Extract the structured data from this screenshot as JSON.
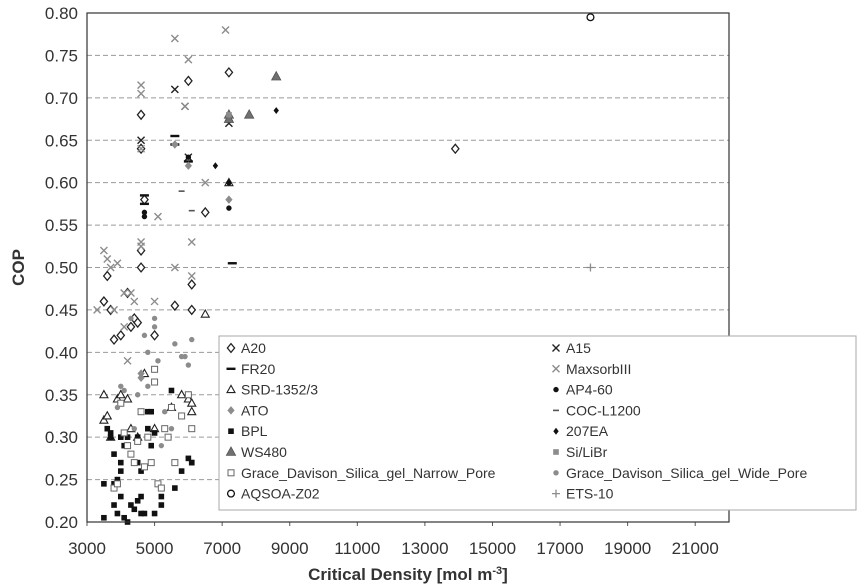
{
  "chart_data": {
    "type": "scatter",
    "title": "",
    "xlabel": "Critical Density [mol m",
    "xlabel_sup": "-3",
    "xlabel_end": "]",
    "ylabel": "COP",
    "xlim": [
      3000,
      22000
    ],
    "ylim": [
      0.2,
      0.8
    ],
    "xticks": [
      "3000",
      "5000",
      "7000",
      "9000",
      "11000",
      "13000",
      "15000",
      "17000",
      "19000",
      "21000"
    ],
    "yticks": [
      "0.20",
      "0.25",
      "0.30",
      "0.35",
      "0.40",
      "0.45",
      "0.50",
      "0.55",
      "0.60",
      "0.65",
      "0.70",
      "0.75",
      "0.80"
    ],
    "grid": "horizontal dashed",
    "legend_position": "center-right",
    "series": [
      {
        "name": "A20",
        "marker": "diamond-open",
        "color": "#222222",
        "points": [
          [
            3500,
            0.46
          ],
          [
            3600,
            0.49
          ],
          [
            3700,
            0.45
          ],
          [
            3800,
            0.415
          ],
          [
            4000,
            0.42
          ],
          [
            4200,
            0.47
          ],
          [
            4300,
            0.43
          ],
          [
            4400,
            0.44
          ],
          [
            4500,
            0.435
          ],
          [
            4600,
            0.5
          ],
          [
            4600,
            0.52
          ],
          [
            4600,
            0.68
          ],
          [
            4600,
            0.64
          ],
          [
            4700,
            0.58
          ],
          [
            5000,
            0.42
          ],
          [
            5600,
            0.455
          ],
          [
            6000,
            0.72
          ],
          [
            6100,
            0.48
          ],
          [
            6100,
            0.45
          ],
          [
            6500,
            0.565
          ],
          [
            7200,
            0.73
          ],
          [
            13900,
            0.64
          ]
        ]
      },
      {
        "name": "A15",
        "marker": "x",
        "color": "#222222",
        "points": [
          [
            4600,
            0.65
          ],
          [
            5600,
            0.71
          ],
          [
            5900,
            0.69
          ],
          [
            6000,
            0.63
          ],
          [
            7200,
            0.67
          ]
        ]
      },
      {
        "name": "FR20",
        "marker": "dash",
        "color": "#111111",
        "points": [
          [
            4700,
            0.585
          ],
          [
            5600,
            0.655
          ],
          [
            5600,
            0.645
          ],
          [
            6000,
            0.625
          ],
          [
            4700,
            0.575
          ],
          [
            7300,
            0.505
          ]
        ]
      },
      {
        "name": "MaxsorbIII",
        "marker": "x",
        "color": "#8c8c8c",
        "points": [
          [
            3300,
            0.45
          ],
          [
            3500,
            0.52
          ],
          [
            3600,
            0.51
          ],
          [
            3700,
            0.5
          ],
          [
            3800,
            0.45
          ],
          [
            3900,
            0.505
          ],
          [
            4100,
            0.47
          ],
          [
            4300,
            0.47
          ],
          [
            4400,
            0.46
          ],
          [
            4600,
            0.705
          ],
          [
            4600,
            0.715
          ],
          [
            4600,
            0.64
          ],
          [
            4600,
            0.53
          ],
          [
            4600,
            0.525
          ],
          [
            5000,
            0.46
          ],
          [
            5100,
            0.56
          ],
          [
            5600,
            0.77
          ],
          [
            5600,
            0.5
          ],
          [
            5900,
            0.69
          ],
          [
            6000,
            0.745
          ],
          [
            6100,
            0.53
          ],
          [
            6100,
            0.49
          ],
          [
            6500,
            0.6
          ],
          [
            7100,
            0.78
          ],
          [
            4100,
            0.43
          ],
          [
            4200,
            0.39
          ]
        ]
      },
      {
        "name": "SRD-1352/3",
        "marker": "triangle-open",
        "color": "#222222",
        "points": [
          [
            3500,
            0.35
          ],
          [
            3500,
            0.32
          ],
          [
            3600,
            0.325
          ],
          [
            3700,
            0.3
          ],
          [
            3900,
            0.345
          ],
          [
            4000,
            0.35
          ],
          [
            4200,
            0.345
          ],
          [
            4300,
            0.31
          ],
          [
            4500,
            0.3
          ],
          [
            4700,
            0.375
          ],
          [
            5000,
            0.31
          ],
          [
            5500,
            0.335
          ],
          [
            5800,
            0.35
          ],
          [
            6000,
            0.345
          ],
          [
            6100,
            0.33
          ],
          [
            6100,
            0.34
          ],
          [
            6500,
            0.445
          ],
          [
            7200,
            0.6
          ]
        ]
      },
      {
        "name": "AP4-60",
        "marker": "circle-filled",
        "color": "#111111",
        "points": [
          [
            4700,
            0.565
          ],
          [
            4700,
            0.56
          ],
          [
            5600,
            0.645
          ],
          [
            6000,
            0.63
          ],
          [
            7200,
            0.57
          ],
          [
            7200,
            0.6
          ]
        ]
      },
      {
        "name": "ATO",
        "marker": "diamond-filled",
        "color": "#8c8c8c",
        "points": [
          [
            4600,
            0.375
          ],
          [
            4600,
            0.37
          ],
          [
            5600,
            0.645
          ],
          [
            6000,
            0.62
          ],
          [
            7200,
            0.58
          ]
        ]
      },
      {
        "name": "COC-L1200",
        "marker": "minus",
        "color": "#555555",
        "points": [
          [
            5800,
            0.59
          ],
          [
            6100,
            0.567
          ]
        ]
      },
      {
        "name": "BPL",
        "marker": "square-filled",
        "color": "#111111",
        "points": [
          [
            3500,
            0.245
          ],
          [
            3500,
            0.205
          ],
          [
            3600,
            0.31
          ],
          [
            3700,
            0.305
          ],
          [
            3700,
            0.3
          ],
          [
            3800,
            0.245
          ],
          [
            3800,
            0.22
          ],
          [
            3800,
            0.28
          ],
          [
            3900,
            0.25
          ],
          [
            3900,
            0.21
          ],
          [
            4000,
            0.23
          ],
          [
            4000,
            0.26
          ],
          [
            4000,
            0.27
          ],
          [
            4000,
            0.3
          ],
          [
            4100,
            0.29
          ],
          [
            4100,
            0.205
          ],
          [
            4200,
            0.2
          ],
          [
            4200,
            0.3
          ],
          [
            4300,
            0.28
          ],
          [
            4300,
            0.22
          ],
          [
            4400,
            0.215
          ],
          [
            4500,
            0.225
          ],
          [
            4500,
            0.3
          ],
          [
            4500,
            0.27
          ],
          [
            4600,
            0.23
          ],
          [
            4600,
            0.21
          ],
          [
            4600,
            0.26
          ],
          [
            4700,
            0.21
          ],
          [
            4800,
            0.31
          ],
          [
            4800,
            0.33
          ],
          [
            4900,
            0.29
          ],
          [
            5000,
            0.305
          ],
          [
            5000,
            0.21
          ],
          [
            5200,
            0.22
          ],
          [
            5500,
            0.355
          ],
          [
            5600,
            0.24
          ],
          [
            5800,
            0.26
          ],
          [
            6000,
            0.275
          ],
          [
            6100,
            0.27
          ],
          [
            6100,
            0.27
          ],
          [
            5200,
            0.23
          ],
          [
            4900,
            0.33
          ]
        ]
      },
      {
        "name": "207EA",
        "marker": "diamond-small-filled",
        "color": "#111111",
        "points": [
          [
            6800,
            0.62
          ],
          [
            7200,
            0.6
          ],
          [
            8600,
            0.685
          ]
        ]
      },
      {
        "name": "WS480",
        "marker": "triangle-filled",
        "color": "#707070",
        "points": [
          [
            7200,
            0.68
          ],
          [
            7200,
            0.675
          ],
          [
            7800,
            0.68
          ],
          [
            8600,
            0.725
          ]
        ]
      },
      {
        "name": "Si/LiBr",
        "marker": "square-filled",
        "color": "#8c8c8c",
        "points": [
          [
            7200,
            0.68
          ]
        ]
      },
      {
        "name": "Grace_Davison_Silica_gel_Narrow_Pore",
        "marker": "square-open",
        "color": "#666666",
        "points": [
          [
            3800,
            0.24
          ],
          [
            3900,
            0.245
          ],
          [
            4000,
            0.34
          ],
          [
            4100,
            0.305
          ],
          [
            4200,
            0.29
          ],
          [
            4300,
            0.28
          ],
          [
            4400,
            0.27
          ],
          [
            4500,
            0.295
          ],
          [
            4600,
            0.33
          ],
          [
            4700,
            0.265
          ],
          [
            4800,
            0.3
          ],
          [
            4900,
            0.27
          ],
          [
            5000,
            0.38
          ],
          [
            5000,
            0.365
          ],
          [
            5100,
            0.245
          ],
          [
            5200,
            0.24
          ],
          [
            5300,
            0.31
          ],
          [
            5400,
            0.3
          ],
          [
            5500,
            0.335
          ],
          [
            5600,
            0.27
          ],
          [
            5800,
            0.325
          ],
          [
            6000,
            0.35
          ],
          [
            6100,
            0.31
          ]
        ]
      },
      {
        "name": "Grace_Davison_Silica_gel_Wide_Pore",
        "marker": "circle-filled",
        "color": "#8c8c8c",
        "points": [
          [
            4300,
            0.44
          ],
          [
            4700,
            0.42
          ],
          [
            4800,
            0.4
          ],
          [
            5000,
            0.44
          ],
          [
            5000,
            0.43
          ],
          [
            5100,
            0.39
          ],
          [
            5300,
            0.33
          ],
          [
            5500,
            0.31
          ],
          [
            5600,
            0.41
          ],
          [
            5800,
            0.395
          ],
          [
            5900,
            0.395
          ],
          [
            6000,
            0.385
          ],
          [
            6100,
            0.415
          ],
          [
            4800,
            0.36
          ],
          [
            4500,
            0.35
          ],
          [
            4000,
            0.36
          ],
          [
            4100,
            0.355
          ],
          [
            3900,
            0.335
          ],
          [
            4400,
            0.31
          ],
          [
            5200,
            0.29
          ]
        ]
      },
      {
        "name": "AQSOA-Z02",
        "marker": "circle-open",
        "color": "#111111",
        "points": [
          [
            17900,
            0.795
          ]
        ]
      },
      {
        "name": "ETS-10",
        "marker": "plus",
        "color": "#8c8c8c",
        "points": [
          [
            17900,
            0.5
          ]
        ]
      }
    ]
  }
}
